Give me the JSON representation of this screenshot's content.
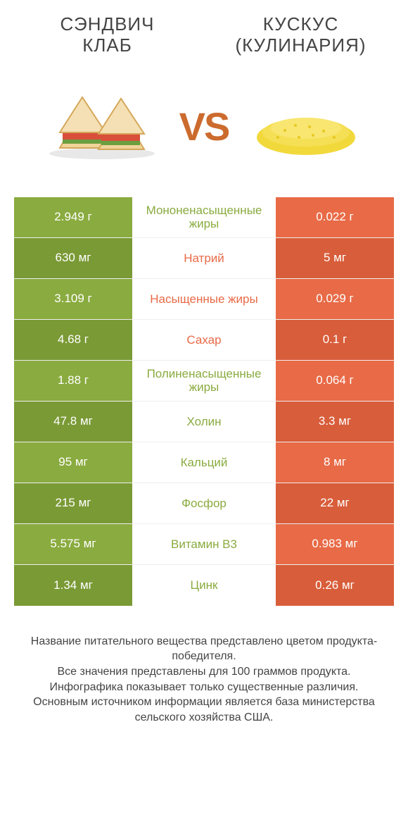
{
  "header": {
    "left_line1": "СЭНДВИЧ",
    "left_line2": "КЛАБ",
    "right_line1": "КУСКУС",
    "right_line2": "(КУЛИНАРИЯ)"
  },
  "vs_label": "VS",
  "colors": {
    "green": "#8aab3f",
    "orange": "#e86a46",
    "green_dark": "#7a9a35",
    "orange_dark": "#d85d3a",
    "mid_text_green": "#8aab3f",
    "mid_text_orange": "#e86a46",
    "vs_color": "#cc6b2e"
  },
  "rows": [
    {
      "left": "2.949 г",
      "mid": "Мононенасыщенные жиры",
      "right": "0.022 г",
      "winner": "left"
    },
    {
      "left": "630 мг",
      "mid": "Натрий",
      "right": "5 мг",
      "winner": "right"
    },
    {
      "left": "3.109 г",
      "mid": "Насыщенные жиры",
      "right": "0.029 г",
      "winner": "right"
    },
    {
      "left": "4.68 г",
      "mid": "Сахар",
      "right": "0.1 г",
      "winner": "right"
    },
    {
      "left": "1.88 г",
      "mid": "Полиненасыщенные жиры",
      "right": "0.064 г",
      "winner": "left"
    },
    {
      "left": "47.8 мг",
      "mid": "Холин",
      "right": "3.3 мг",
      "winner": "left"
    },
    {
      "left": "95 мг",
      "mid": "Кальций",
      "right": "8 мг",
      "winner": "left"
    },
    {
      "left": "215 мг",
      "mid": "Фосфор",
      "right": "22 мг",
      "winner": "left"
    },
    {
      "left": "5.575 мг",
      "mid": "Витамин B3",
      "right": "0.983 мг",
      "winner": "left"
    },
    {
      "left": "1.34 мг",
      "mid": "Цинк",
      "right": "0.26 мг",
      "winner": "left"
    }
  ],
  "footer": {
    "line1": "Название питательного вещества представлено цветом продукта-победителя.",
    "line2": "Все значения представлены для 100 граммов продукта.",
    "line3": "Инфографика показывает только существенные различия.",
    "line4": "Основным источником информации является база министерства сельского хозяйства США."
  }
}
